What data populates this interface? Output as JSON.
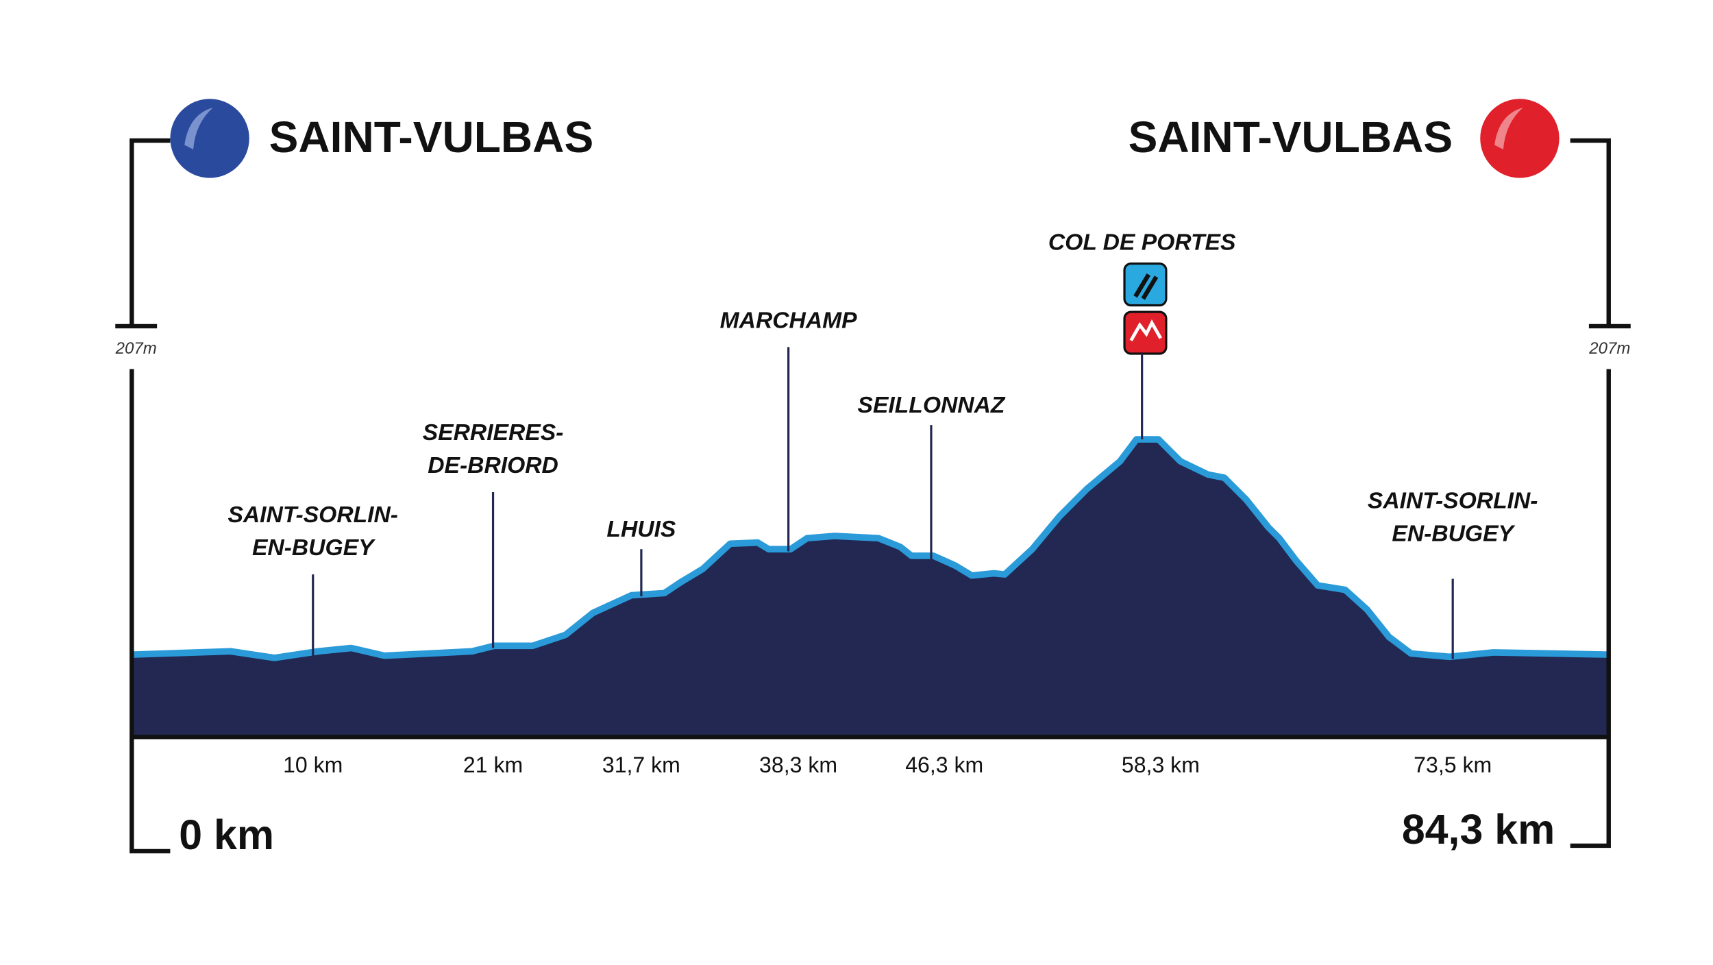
{
  "start": {
    "city": "SAINT-VULBAS",
    "km": "0 km",
    "altitude": "207m"
  },
  "finish": {
    "city": "SAINT-VULBAS",
    "km": "84,3 km",
    "altitude": "207m"
  },
  "waypoints": [
    {
      "name": [
        "SAINT-SORLIN-",
        "EN-BUGEY"
      ],
      "km": "10 km"
    },
    {
      "name": [
        "SERRIERES-",
        "DE-BRIORD"
      ],
      "km": "21 km"
    },
    {
      "name": [
        "LHUIS"
      ],
      "km": "31,7 km"
    },
    {
      "name": [
        "MARCHAMP"
      ],
      "km": "38,3 km"
    },
    {
      "name": [
        "SEILLONNAZ"
      ],
      "km": "46,3 km"
    },
    {
      "name": [
        "COL DE PORTES"
      ],
      "km": "58,3 km"
    },
    {
      "name": [
        "SAINT-SORLIN-",
        "EN-BUGEY"
      ],
      "km": "73,5 km"
    }
  ]
}
